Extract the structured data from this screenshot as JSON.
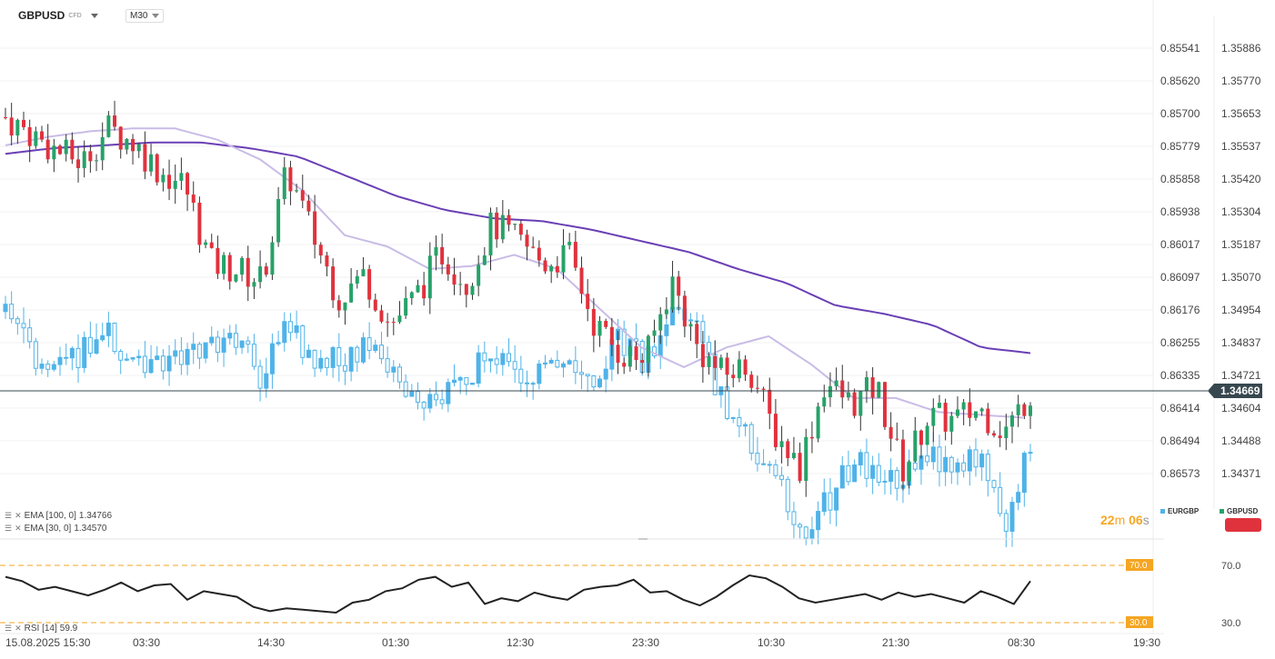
{
  "header": {
    "symbol": "GBPUSD",
    "symbol_type": "CFD",
    "timeframe": "M30"
  },
  "indicators": [
    {
      "label": "EMA [100,  0]",
      "value": "1.34766"
    },
    {
      "label": "EMA [30,  0]",
      "value": "1.34570"
    }
  ],
  "rsi": {
    "label": "RSI [14]",
    "value": "59.9",
    "upper": "70.0",
    "lower": "30.0",
    "axis_upper": "70.0",
    "axis_lower": "30.0"
  },
  "timer": {
    "min": "22",
    "min_unit": "m",
    "sec": "06",
    "sec_unit": "s"
  },
  "legend": [
    {
      "name": "EURGBP",
      "color": "#4fb3e8"
    },
    {
      "name": "GBPUSD",
      "color": "#26a269"
    }
  ],
  "colors": {
    "up": "#26a269",
    "down": "#e0323d",
    "eur": "#4fb3e8",
    "ema100": "#6a3fb5",
    "ema30": "#c9bce6"
  },
  "chart_data": {
    "type": "candlestick",
    "current_price": "1.34669",
    "right_axis_ticks": [
      "1.35886",
      "1.35770",
      "1.35653",
      "1.35537",
      "1.35420",
      "1.35304",
      "1.35187",
      "1.35070",
      "1.34954",
      "1.34837",
      "1.34721",
      "1.34604",
      "1.34488",
      "1.34371"
    ],
    "left_axis_ticks": [
      "0.85541",
      "0.85620",
      "0.85700",
      "0.85779",
      "0.85858",
      "0.85938",
      "0.86017",
      "0.86097",
      "0.86176",
      "0.86255",
      "0.86335",
      "0.86414",
      "0.86494",
      "0.86573"
    ],
    "x_labels": [
      "15.08.2025  15:30",
      "03:30",
      "14:30",
      "01:30",
      "12:30",
      "23:30",
      "10:30",
      "21:30",
      "08:30",
      "19:30"
    ],
    "gbpusd_anchors": [
      1.3564,
      1.3558,
      1.3552,
      1.3548,
      1.356,
      1.3555,
      1.3545,
      1.354,
      1.3512,
      1.351,
      1.3506,
      1.3545,
      1.3522,
      1.35,
      1.3508,
      1.349,
      1.35,
      1.3516,
      1.3505,
      1.3526,
      1.352,
      1.3512,
      1.3515,
      1.349,
      1.348,
      1.3478,
      1.3506,
      1.3482,
      1.3472,
      1.3476,
      1.3452,
      1.344,
      1.347,
      1.3462,
      1.3468,
      1.3438,
      1.3457,
      1.3456,
      1.346,
      1.3452,
      1.3466
    ],
    "eurgbp_anchors": [
      0.8618,
      0.8628,
      0.863,
      0.8628,
      0.8623,
      0.8632,
      0.863,
      0.8627,
      0.8625,
      0.8625,
      0.8634,
      0.862,
      0.8631,
      0.863,
      0.8626,
      0.8632,
      0.864,
      0.864,
      0.8633,
      0.8628,
      0.8634,
      0.8633,
      0.863,
      0.8633,
      0.8625,
      0.8631,
      0.8615,
      0.8622,
      0.8641,
      0.8648,
      0.8658,
      0.8672,
      0.8665,
      0.8655,
      0.8656,
      0.866,
      0.8653,
      0.8656,
      0.8653,
      0.867,
      0.8651
    ],
    "ema100_anchors": [
      1.3551,
      1.3553,
      1.3554,
      1.3555,
      1.3555,
      1.3553,
      1.355,
      1.3543,
      1.3536,
      1.3531,
      1.3528,
      1.3527,
      1.3524,
      1.352,
      1.3516,
      1.351,
      1.3505,
      1.3497,
      1.3494,
      1.349,
      1.3482,
      1.348
    ],
    "ema30_anchors": [
      1.3554,
      1.3557,
      1.3559,
      1.356,
      1.356,
      1.3556,
      1.3549,
      1.3538,
      1.3522,
      1.3518,
      1.351,
      1.3511,
      1.3515,
      1.351,
      1.3496,
      1.3482,
      1.3475,
      1.3482,
      1.3486,
      1.3476,
      1.3464,
      1.3464,
      1.3459,
      1.3458,
      1.3457
    ],
    "rsi_anchors": [
      62,
      59,
      53,
      55,
      52,
      49,
      53,
      58,
      52,
      56,
      57,
      46,
      52,
      50,
      48,
      41,
      38,
      40,
      39,
      38,
      37,
      44,
      46,
      52,
      54,
      60,
      62,
      55,
      58,
      43,
      47,
      45,
      51,
      48,
      46,
      53,
      55,
      56,
      60,
      51,
      52,
      46,
      42,
      48,
      56,
      63,
      61,
      55,
      47,
      44,
      46,
      48,
      50,
      46,
      51,
      48,
      50,
      47,
      44,
      52,
      48,
      43,
      59
    ]
  }
}
